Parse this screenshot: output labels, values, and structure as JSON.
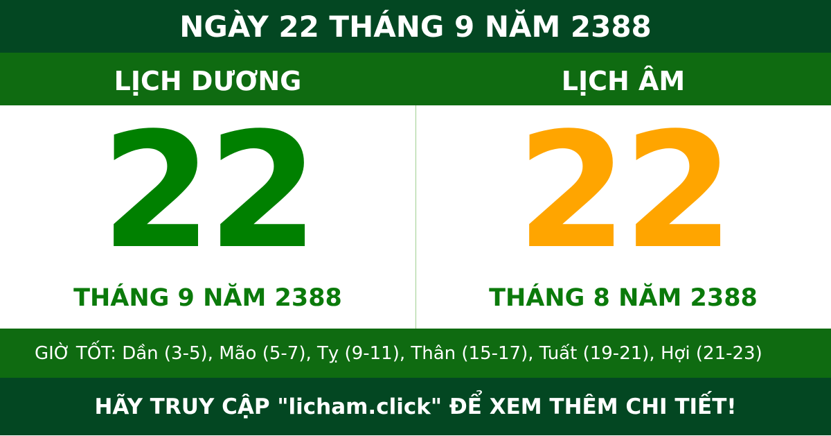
{
  "title": "NGÀY 22 THÁNG 9 NĂM 2388",
  "solar": {
    "label": "LỊCH DƯƠNG",
    "day": "22",
    "month_year": "THÁNG 9 NĂM 2388"
  },
  "lunar": {
    "label": "LỊCH ÂM",
    "day": "22",
    "month_year": "THÁNG 8 NĂM 2388"
  },
  "good_hours": "GIỜ TỐT: Dần (3-5), Mão (5-7), Tỵ (9-11), Thân (15-17), Tuất (19-21), Hợi (21-23)",
  "footer": "HÃY TRUY CẬP \"licham.click\" ĐỂ XEM THÊM CHI TIẾT!",
  "colors": {
    "dark_green": "#034722",
    "green": "#0f6b11",
    "solar_day": "#008000",
    "lunar_day": "#ffa500"
  }
}
